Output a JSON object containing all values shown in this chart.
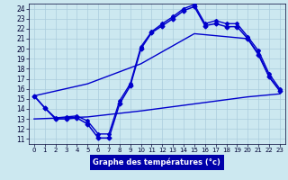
{
  "background_color": "#cce8f0",
  "plot_bg": "#cce8f0",
  "line_color": "#0000cc",
  "grid_color": "#aaccdd",
  "xlabel": "Graphe des températures (°c)",
  "xlabel_color": "#ffffff",
  "xlabel_bg": "#0000aa",
  "ylim": [
    10.5,
    24.5
  ],
  "xlim": [
    -0.5,
    23.5
  ],
  "yticks": [
    11,
    12,
    13,
    14,
    15,
    16,
    17,
    18,
    19,
    20,
    21,
    22,
    23,
    24
  ],
  "xticks": [
    0,
    1,
    2,
    3,
    4,
    5,
    6,
    7,
    8,
    9,
    10,
    11,
    12,
    13,
    14,
    15,
    16,
    17,
    18,
    19,
    20,
    21,
    22,
    23
  ],
  "series": [
    {
      "x": [
        0,
        1,
        2,
        3,
        4,
        5,
        6,
        7,
        8,
        9,
        10,
        11,
        12,
        13,
        14,
        15,
        16,
        17,
        18,
        19,
        20,
        21,
        22,
        23
      ],
      "y": [
        15.3,
        14.1,
        13.0,
        13.0,
        13.1,
        12.5,
        11.1,
        11.1,
        14.5,
        16.3,
        20.0,
        21.6,
        22.3,
        23.0,
        23.8,
        24.2,
        22.3,
        22.5,
        22.2,
        22.2,
        21.0,
        19.4,
        17.2,
        15.8
      ],
      "marker": "D",
      "markersize": 2.5,
      "linewidth": 1.1,
      "has_marker": true
    },
    {
      "x": [
        0,
        1,
        2,
        3,
        4,
        5,
        6,
        7,
        8,
        9,
        10,
        11,
        12,
        13,
        14,
        15,
        16,
        17,
        18,
        19,
        20,
        21,
        22,
        23
      ],
      "y": [
        15.3,
        14.1,
        13.1,
        13.2,
        13.3,
        12.8,
        11.5,
        11.5,
        14.8,
        16.5,
        20.2,
        21.7,
        22.5,
        23.2,
        24.0,
        24.4,
        22.5,
        22.8,
        22.5,
        22.5,
        21.2,
        19.8,
        17.5,
        16.0
      ],
      "marker": "D",
      "markersize": 2.0,
      "linewidth": 1.0,
      "has_marker": true
    },
    {
      "x": [
        0,
        5,
        10,
        15,
        20,
        21,
        22,
        23
      ],
      "y": [
        15.3,
        16.5,
        18.5,
        21.5,
        21.0,
        19.5,
        17.2,
        15.8
      ],
      "marker": null,
      "markersize": 0,
      "linewidth": 1.0,
      "has_marker": false
    },
    {
      "x": [
        0,
        5,
        10,
        15,
        20,
        23
      ],
      "y": [
        13.0,
        13.2,
        13.8,
        14.5,
        15.2,
        15.5
      ],
      "marker": null,
      "markersize": 0,
      "linewidth": 1.0,
      "has_marker": false
    }
  ]
}
